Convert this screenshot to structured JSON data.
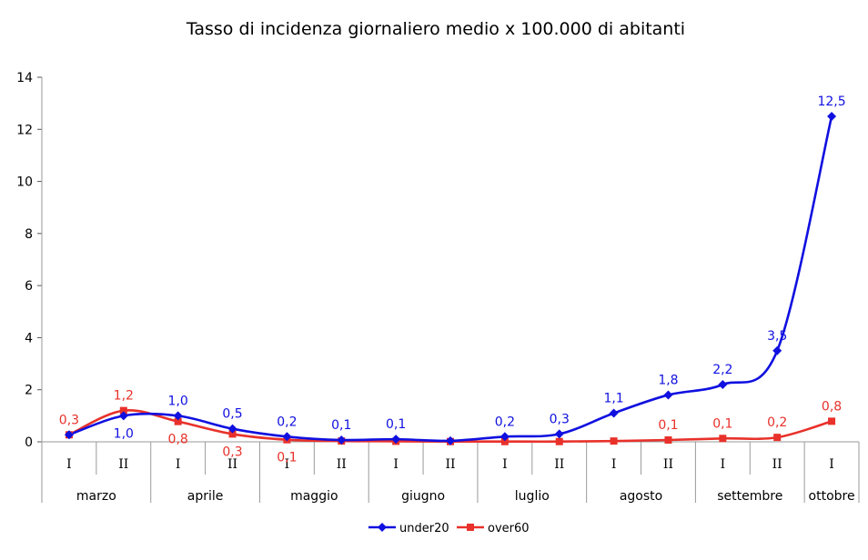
{
  "chart_data": {
    "type": "line",
    "title": "Tasso di incidenza giornaliero medio x 100.000 di abitanti",
    "xlabel": "",
    "ylabel": "",
    "ylim": [
      0,
      14
    ],
    "yticks": [
      "0",
      "2",
      "4",
      "6",
      "8",
      "10",
      "12",
      "14"
    ],
    "grid": false,
    "smooth": true,
    "legend_position": "bottom",
    "categories": [
      "I",
      "II",
      "I",
      "II",
      "I",
      "II",
      "I",
      "II",
      "I",
      "II",
      "I",
      "II",
      "I",
      "II",
      "I"
    ],
    "months": [
      {
        "label": "marzo",
        "span": 2
      },
      {
        "label": "aprile",
        "span": 2
      },
      {
        "label": "maggio",
        "span": 2
      },
      {
        "label": "giugno",
        "span": 2
      },
      {
        "label": "luglio",
        "span": 2
      },
      {
        "label": "agosto",
        "span": 2
      },
      {
        "label": "settembre",
        "span": 2
      },
      {
        "label": "ottobre",
        "span": 1
      }
    ],
    "series": [
      {
        "name": "under20",
        "color": "#1010e0",
        "marker": "diamond",
        "values": [
          0.27,
          1.0,
          1.0,
          0.5,
          0.2,
          0.07,
          0.1,
          0.04,
          0.2,
          0.3,
          1.1,
          1.8,
          2.2,
          3.5,
          12.5
        ],
        "labels": [
          "",
          "1,0",
          "1,0",
          "0,5",
          "0,2",
          "0,1",
          "0,1",
          "",
          "0,2",
          "0,3",
          "1,1",
          "1,8",
          "2,2",
          "3,5",
          "12,5"
        ],
        "label_side": [
          "",
          "below",
          "above",
          "above",
          "above",
          "above",
          "above",
          "",
          "above",
          "above",
          "above",
          "above",
          "above",
          "above",
          "above"
        ]
      },
      {
        "name": "over60",
        "color": "#e8312a",
        "marker": "square",
        "values": [
          0.27,
          1.2,
          0.78,
          0.3,
          0.08,
          0.03,
          0.02,
          0.01,
          0.01,
          0.01,
          0.03,
          0.07,
          0.13,
          0.17,
          0.79
        ],
        "labels": [
          "0,3",
          "1,2",
          "0,8",
          "0,3",
          "0,1",
          "",
          "",
          "",
          "",
          "",
          "",
          "0,1",
          "0,1",
          "0,2",
          "0,8"
        ],
        "label_side": [
          "above",
          "above",
          "below",
          "below",
          "below",
          "",
          "",
          "",
          "",
          "",
          "",
          "above",
          "above",
          "above",
          "above"
        ]
      }
    ]
  }
}
